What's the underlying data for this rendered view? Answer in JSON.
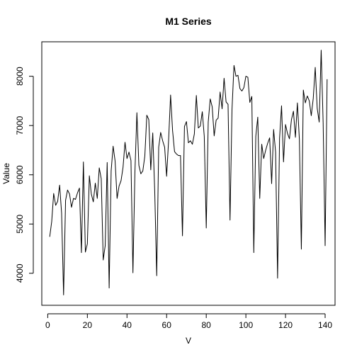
{
  "chart_data": {
    "type": "line",
    "title": "M1 Series",
    "xlabel": "V",
    "ylabel": "Value",
    "xlim": [
      -3,
      145
    ],
    "ylim": [
      3350,
      8700
    ],
    "x_ticks": [
      0,
      20,
      40,
      60,
      80,
      100,
      120,
      140
    ],
    "y_ticks": [
      4000,
      5000,
      6000,
      7000,
      8000
    ],
    "x_tick_labels": [
      "0",
      "20",
      "40",
      "60",
      "80",
      "100",
      "120",
      "140"
    ],
    "y_tick_labels": [
      "4000",
      "5000",
      "6000",
      "7000",
      "8000"
    ],
    "grid": false,
    "series": [
      {
        "color": "#000000",
        "x_start": 1,
        "x_step": 1,
        "values": [
          4740,
          5050,
          5620,
          5380,
          5460,
          5790,
          5220,
          3560,
          5480,
          5690,
          5610,
          5340,
          5520,
          5500,
          5630,
          5730,
          4420,
          6260,
          4430,
          4600,
          5980,
          5610,
          5450,
          5830,
          5520,
          6140,
          5920,
          4270,
          4560,
          6250,
          3700,
          6080,
          6580,
          6280,
          5520,
          5770,
          5880,
          6150,
          6660,
          6330,
          6460,
          6290,
          4010,
          6050,
          7260,
          6190,
          6020,
          6080,
          6380,
          7210,
          7120,
          6100,
          6850,
          5660,
          3950,
          6560,
          6860,
          6690,
          6560,
          5970,
          6700,
          7620,
          6900,
          6470,
          6420,
          6390,
          6390,
          4760,
          6980,
          7080,
          6650,
          6690,
          6620,
          6830,
          7610,
          6950,
          6990,
          7280,
          6780,
          4920,
          7070,
          7540,
          7380,
          6790,
          7110,
          7150,
          7680,
          7340,
          7960,
          7480,
          7430,
          5080,
          7330,
          8220,
          8000,
          8020,
          7750,
          7700,
          7770,
          8000,
          7980,
          7470,
          7590,
          4420,
          6780,
          7170,
          5520,
          6620,
          6330,
          6500,
          6640,
          6750,
          5820,
          6920,
          6460,
          3900,
          6740,
          7400,
          6260,
          7020,
          6840,
          6730,
          7120,
          7290,
          6760,
          7460,
          6720,
          4490,
          7720,
          7460,
          7600,
          7500,
          7200,
          7550,
          8180,
          7350,
          7070,
          8530,
          7050,
          4560,
          7940
        ]
      }
    ]
  }
}
